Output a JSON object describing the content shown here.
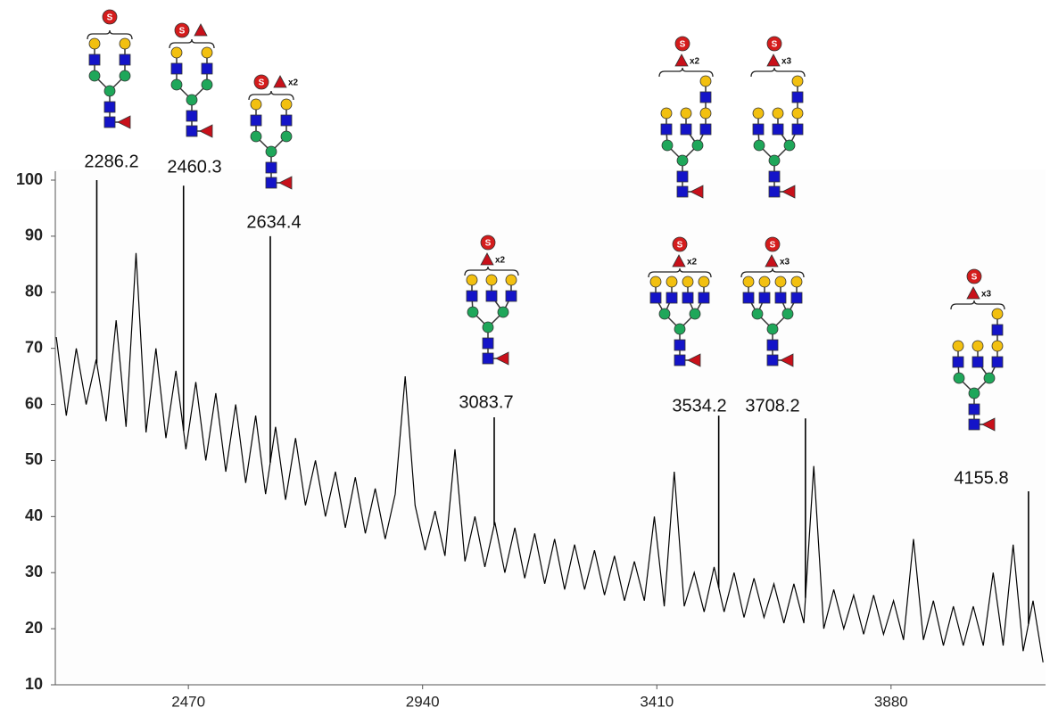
{
  "chart_data": {
    "type": "line",
    "x": [
      2205,
      2225,
      2245,
      2265,
      2285,
      2305,
      2325,
      2345,
      2365,
      2385,
      2405,
      2425,
      2445,
      2465,
      2485,
      2505,
      2525,
      2545,
      2565,
      2585,
      2605,
      2625,
      2645,
      2665,
      2685,
      2705,
      2725,
      2745,
      2765,
      2785,
      2805,
      2825,
      2845,
      2865,
      2885,
      2905,
      2925,
      2945,
      2965,
      2985,
      3005,
      3025,
      3045,
      3065,
      3085,
      3105,
      3125,
      3145,
      3165,
      3185,
      3205,
      3225,
      3245,
      3265,
      3285,
      3305,
      3325,
      3345,
      3365,
      3385,
      3405,
      3425,
      3445,
      3465,
      3485,
      3505,
      3525,
      3545,
      3565,
      3585,
      3605,
      3625,
      3645,
      3665,
      3685,
      3705,
      3725,
      3745,
      3765,
      3785,
      3805,
      3825,
      3845,
      3865,
      3885,
      3905,
      3925,
      3945,
      3965,
      3985,
      4005,
      4025,
      4045,
      4065,
      4085,
      4105,
      4125,
      4145,
      4165,
      4185
    ],
    "values": [
      72,
      58,
      70,
      60,
      68,
      57,
      75,
      56,
      87,
      55,
      70,
      54,
      66,
      52,
      64,
      50,
      62,
      48,
      60,
      46,
      58,
      44,
      56,
      43,
      54,
      42,
      50,
      40,
      48,
      38,
      47,
      37,
      45,
      36,
      44,
      65,
      42,
      34,
      41,
      33,
      52,
      32,
      40,
      31,
      39,
      30,
      38,
      29,
      37,
      28,
      36,
      27,
      35,
      27,
      34,
      26,
      33,
      25,
      32,
      25,
      40,
      24,
      48,
      24,
      30,
      23,
      31,
      23,
      30,
      22,
      29,
      22,
      28,
      21,
      28,
      21,
      49,
      20,
      27,
      20,
      26,
      19,
      26,
      19,
      25,
      18,
      36,
      18,
      25,
      17,
      24,
      17,
      24,
      17,
      30,
      17,
      35,
      16,
      25,
      14
    ],
    "color": "#000000",
    "xlim": [
      2203,
      4190
    ],
    "ylim": [
      10,
      100
    ],
    "xticks": [
      2470,
      2940,
      3410,
      3880
    ],
    "yticks": [
      10,
      20,
      30,
      40,
      50,
      60,
      70,
      80,
      90,
      100
    ],
    "peaks": [
      {
        "x": 2286.2,
        "y": 100,
        "glycans": [
          {
            "sialic": "S"
          }
        ]
      },
      {
        "x": 2460.3,
        "y": 99,
        "glycans": [
          {
            "sialic": "S"
          }
        ]
      },
      {
        "x": 2634.4,
        "y": 90,
        "glycans": [
          {
            "sialic": "S",
            "fucose": "x2"
          }
        ]
      },
      {
        "x": 3083.7,
        "y": 57.7,
        "glycans": [
          {
            "sialic": "S",
            "fucose": "x2"
          }
        ]
      },
      {
        "x": 3534.2,
        "y": 58,
        "glycans": [
          {
            "sialic": "S",
            "fucose": "x2"
          },
          {
            "sialic": "S",
            "fucose": "x2"
          }
        ]
      },
      {
        "x": 3708.2,
        "y": 57.5,
        "glycans": [
          {
            "sialic": "S",
            "fucose": "x3"
          },
          {
            "sialic": "S",
            "fucose": "x3"
          }
        ]
      },
      {
        "x": 4155.8,
        "y": 44.5,
        "glycans": [
          {
            "sialic": "S",
            "fucose": "x3"
          }
        ]
      }
    ]
  }
}
